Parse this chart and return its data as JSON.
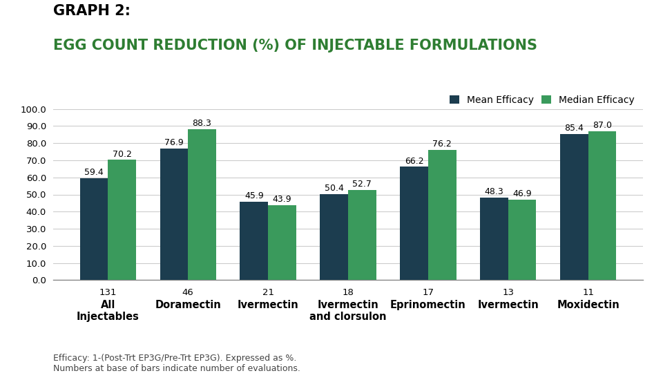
{
  "title_line1": "GRAPH 2:",
  "title_line2": "EGG COUNT REDUCTION (%) OF INJECTABLE FORMULATIONS",
  "categories": [
    "All\nInjectables",
    "Doramectin",
    "Ivermectin",
    "Ivermectin\nand clorsulon",
    "Eprinomectin",
    "Ivermectin",
    "Moxidectin"
  ],
  "n_values": [
    "131",
    "46",
    "21",
    "18",
    "17",
    "13",
    "11"
  ],
  "mean_values": [
    59.4,
    76.9,
    45.9,
    50.4,
    66.2,
    48.3,
    85.4
  ],
  "median_values": [
    70.2,
    88.3,
    43.9,
    52.7,
    76.2,
    46.9,
    87.0
  ],
  "mean_color": "#1c3d4f",
  "median_color": "#3a9a5c",
  "mean_label": "Mean Efficacy",
  "median_label": "Median Efficacy",
  "ylim": [
    0,
    100
  ],
  "yticks": [
    0.0,
    10.0,
    20.0,
    30.0,
    40.0,
    50.0,
    60.0,
    70.0,
    80.0,
    90.0,
    100.0
  ],
  "ytick_labels": [
    "0.0",
    "10.0",
    "20.0",
    "30.0",
    "40.0",
    "50.0",
    "60.0",
    "70.0",
    "80.0",
    "90.0",
    "100.0"
  ],
  "footnote_line1": "Efficacy: 1-(Post-Trt EP3G/Pre-Trt EP3G). Expressed as %.",
  "footnote_line2": "Numbers at base of bars indicate number of evaluations.",
  "background_color": "#ffffff",
  "title_color1": "#000000",
  "title_color2": "#2e7d32",
  "bar_width": 0.35,
  "value_fontsize": 9.0,
  "tick_fontsize": 9.5,
  "n_fontsize": 9.5,
  "cat_fontsize": 10.5,
  "legend_fontsize": 10,
  "footnote_fontsize": 9.0,
  "title1_fontsize": 15,
  "title2_fontsize": 15
}
